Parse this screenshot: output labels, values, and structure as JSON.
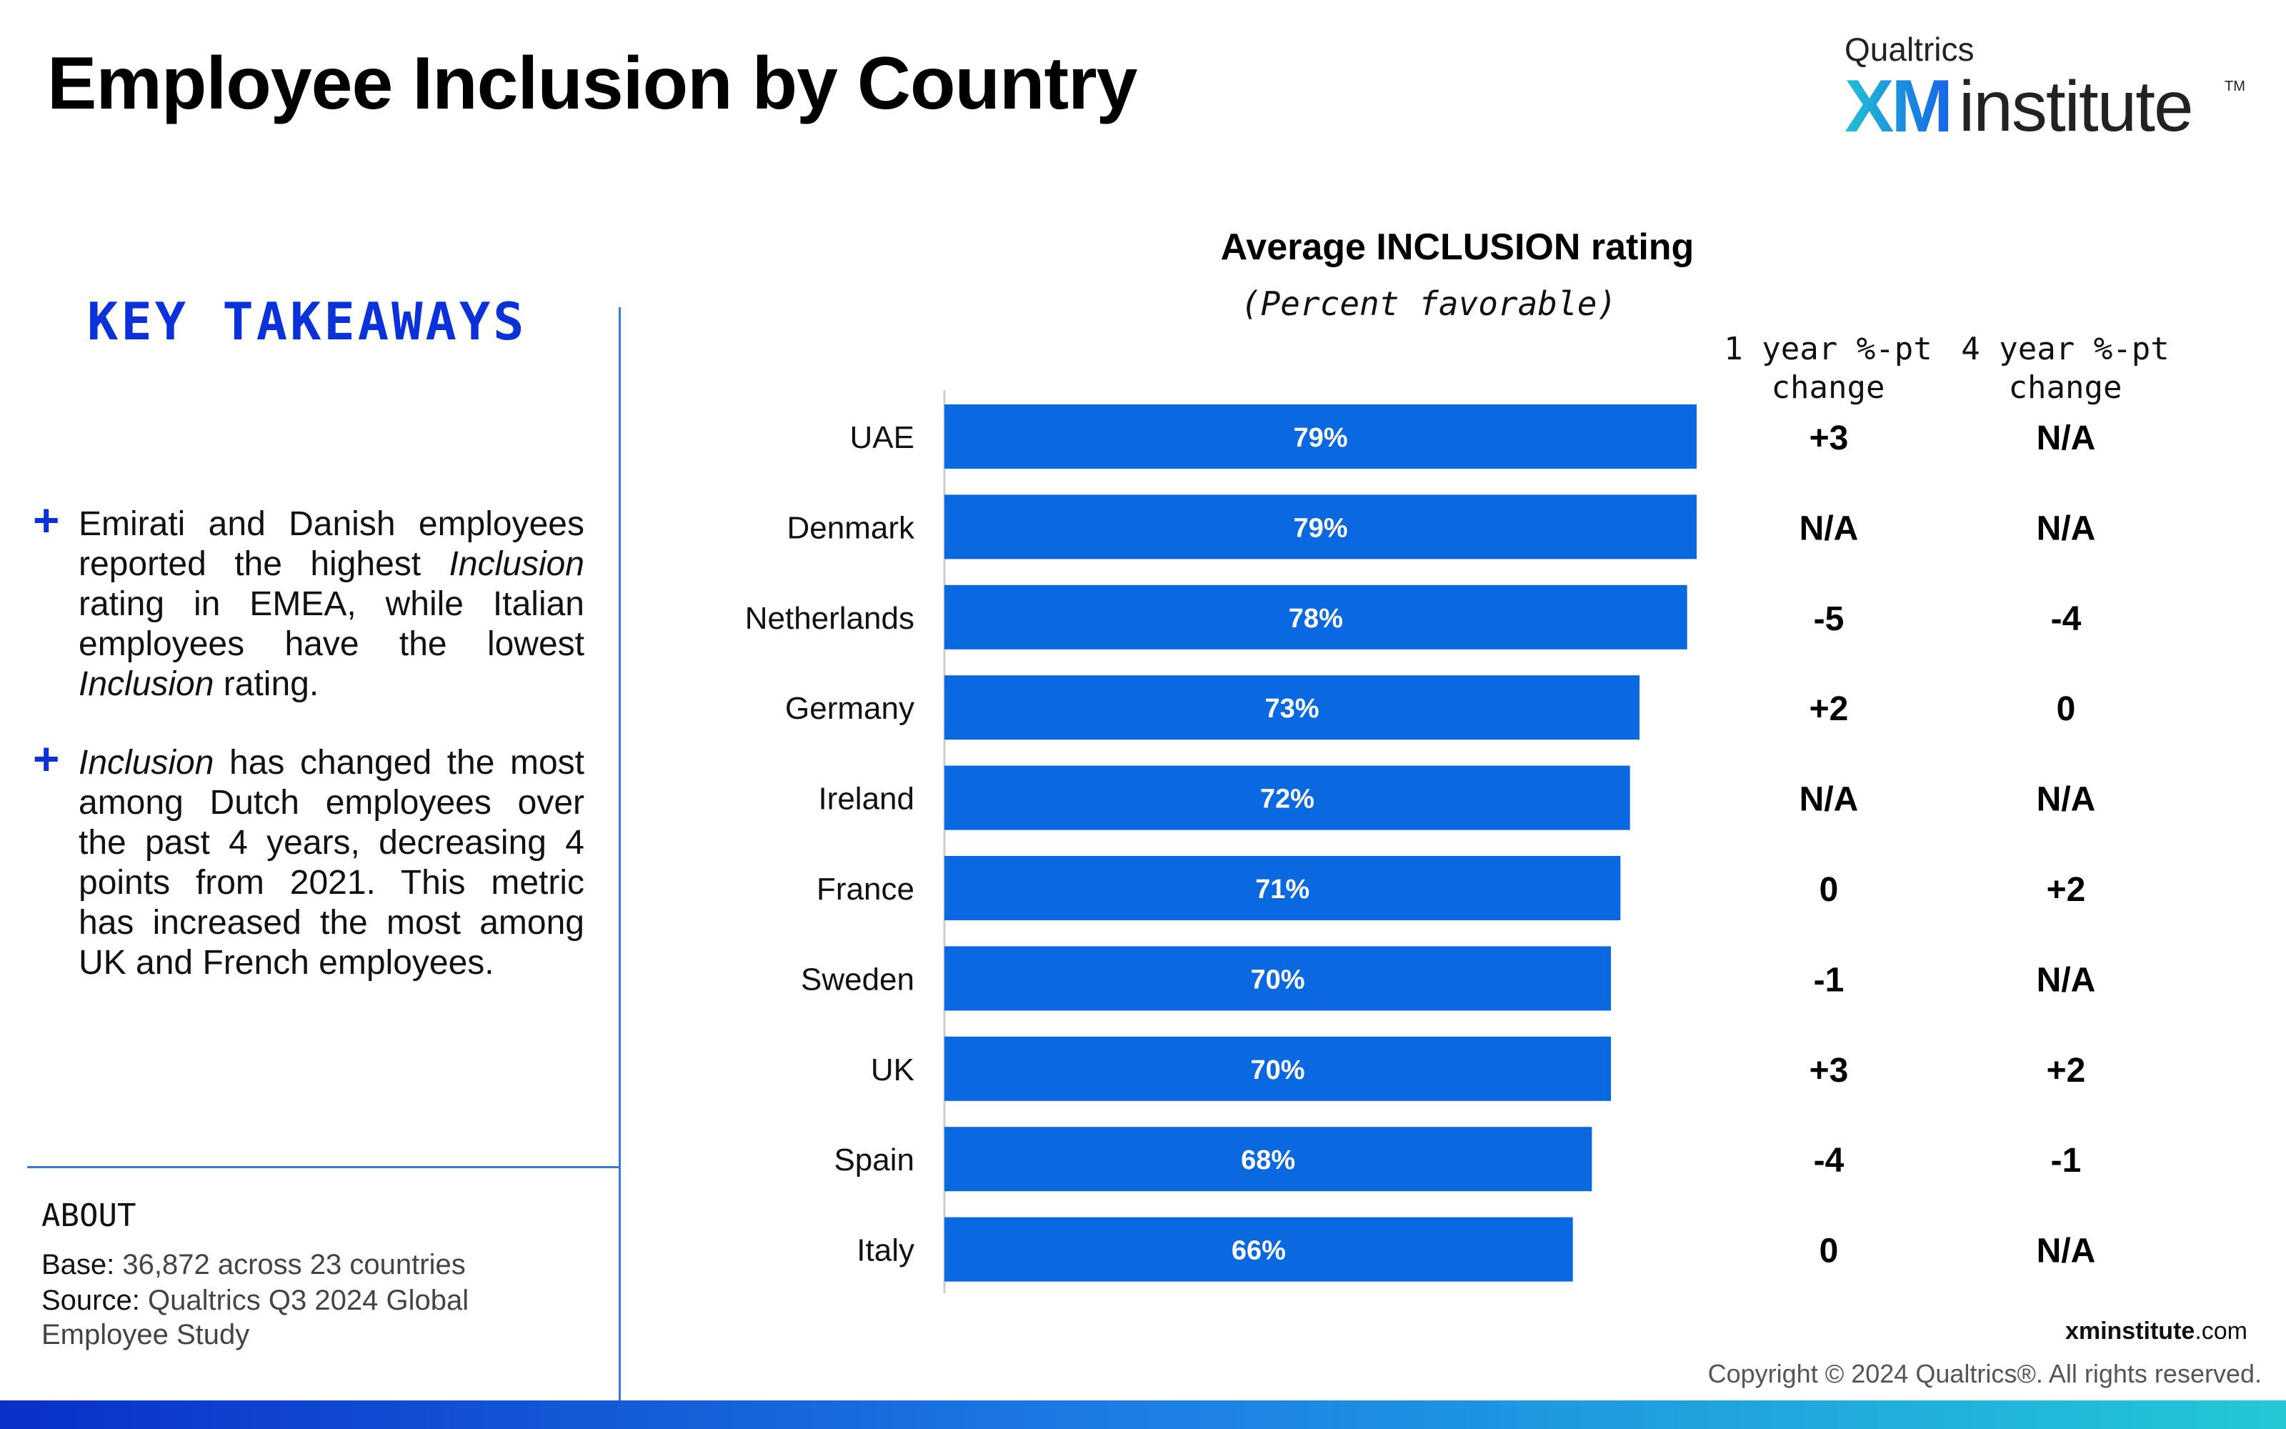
{
  "page_title": "Employee Inclusion by Country",
  "logo": {
    "brand": "Qualtrics",
    "xm": "XM",
    "institute": "institute",
    "tm": "TM"
  },
  "key_takeaways": {
    "heading": "KEY TAKEAWAYS",
    "item1": {
      "part1": "Emirati and Danish employees reported the highest ",
      "italic1": "Inclusion",
      "part2": " rating in EMEA, while Italian employees have the lowest ",
      "italic2": "Inclusion",
      "part3": " rating."
    },
    "item2": {
      "italic1": "Inclusion",
      "part1": " has changed the most among Dutch employees over the past 4 years, decreasing 4 points from 2021. This metric has increased the most among UK and French employees."
    }
  },
  "about": {
    "title": "ABOUT",
    "base_label": "Base:",
    "base_value": " 36,872 across 23 countries",
    "source_label": "Source:",
    "source_value": " Qualtrics Q3 2024 Global Employee Study"
  },
  "columns": {
    "one_year": "1 year %-pt change",
    "four_year": "4 year %-pt change"
  },
  "chart_data": {
    "type": "bar",
    "orientation": "horizontal",
    "title": "Average INCLUSION rating",
    "subtitle": "(Percent favorable)",
    "categories": [
      "UAE",
      "Denmark",
      "Netherlands",
      "Germany",
      "Ireland",
      "France",
      "Sweden",
      "UK",
      "Spain",
      "Italy"
    ],
    "values": [
      79,
      79,
      78,
      73,
      72,
      71,
      70,
      70,
      68,
      66
    ],
    "value_labels": [
      "79%",
      "79%",
      "78%",
      "73%",
      "72%",
      "71%",
      "70%",
      "70%",
      "68%",
      "66%"
    ],
    "one_year_change": [
      "+3",
      "N/A",
      "-5",
      "+2",
      "N/A",
      "0",
      "-1",
      "+3",
      "-4",
      "0"
    ],
    "four_year_change": [
      "N/A",
      "N/A",
      "-4",
      "0",
      "N/A",
      "+2",
      "N/A",
      "+2",
      "-1",
      "N/A"
    ],
    "bar_color": "#0a69e0"
  },
  "footer": {
    "site_bold": "xminstitute",
    "site_rest": ".com",
    "copyright": "Copyright © 2024 Qualtrics®. All rights reserved."
  }
}
